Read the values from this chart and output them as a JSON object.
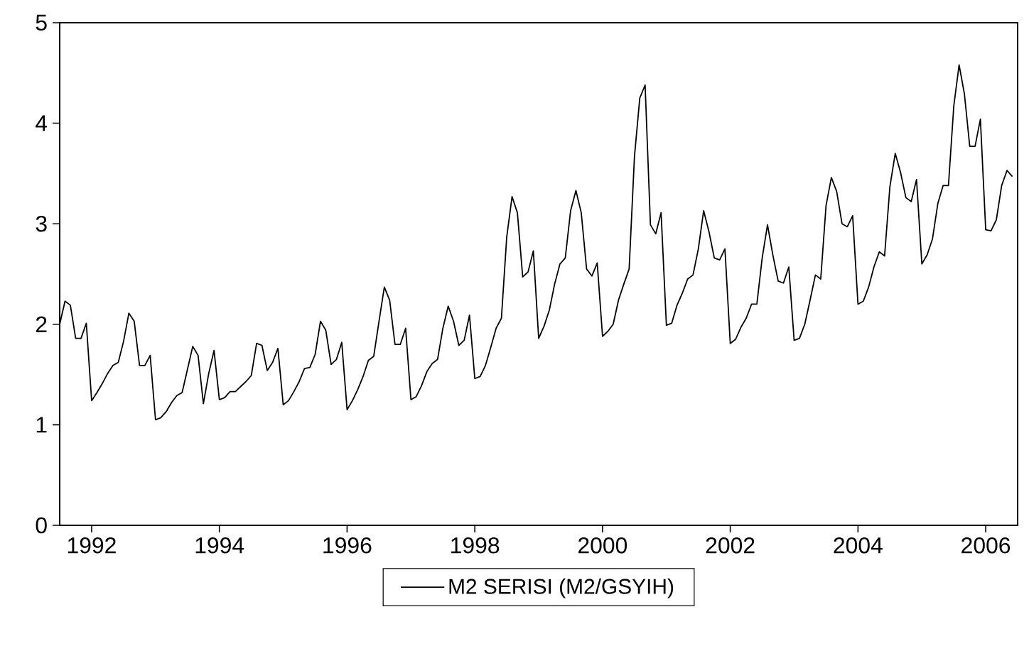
{
  "chart_data": {
    "type": "line",
    "x": [
      "1992-01",
      "1992-02",
      "1992-03",
      "1992-04",
      "1992-05",
      "1992-06",
      "1992-07",
      "1992-08",
      "1992-09",
      "1992-10",
      "1992-11",
      "1992-12",
      "1993-01",
      "1993-02",
      "1993-03",
      "1993-04",
      "1993-05",
      "1993-06",
      "1993-07",
      "1993-08",
      "1993-09",
      "1993-10",
      "1993-11",
      "1993-12",
      "1994-01",
      "1994-02",
      "1994-03",
      "1994-04",
      "1994-05",
      "1994-06",
      "1994-07",
      "1994-08",
      "1994-09",
      "1994-10",
      "1994-11",
      "1994-12",
      "1995-01",
      "1995-02",
      "1995-03",
      "1995-04",
      "1995-05",
      "1995-06",
      "1995-07",
      "1995-08",
      "1995-09",
      "1995-10",
      "1995-11",
      "1995-12",
      "1996-01",
      "1996-02",
      "1996-03",
      "1996-04",
      "1996-05",
      "1996-06",
      "1996-07",
      "1996-08",
      "1996-09",
      "1996-10",
      "1996-11",
      "1996-12",
      "1997-01",
      "1997-02",
      "1997-03",
      "1997-04",
      "1997-05",
      "1997-06",
      "1997-07",
      "1997-08",
      "1997-09",
      "1997-10",
      "1997-11",
      "1997-12",
      "1998-01",
      "1998-02",
      "1998-03",
      "1998-04",
      "1998-05",
      "1998-06",
      "1998-07",
      "1998-08",
      "1998-09",
      "1998-10",
      "1998-11",
      "1998-12",
      "1999-01",
      "1999-02",
      "1999-03",
      "1999-04",
      "1999-05",
      "1999-06",
      "1999-07",
      "1999-08",
      "1999-09",
      "1999-10",
      "1999-11",
      "1999-12",
      "2000-01",
      "2000-02",
      "2000-03",
      "2000-04",
      "2000-05",
      "2000-06",
      "2000-07",
      "2000-08",
      "2000-09",
      "2000-10",
      "2000-11",
      "2000-12",
      "2001-01",
      "2001-02",
      "2001-03",
      "2001-04",
      "2001-05",
      "2001-06",
      "2001-07",
      "2001-08",
      "2001-09",
      "2001-10",
      "2001-11",
      "2001-12",
      "2002-01",
      "2002-02",
      "2002-03",
      "2002-04",
      "2002-05",
      "2002-06",
      "2002-07",
      "2002-08",
      "2002-09",
      "2002-10",
      "2002-11",
      "2002-12",
      "2003-01",
      "2003-02",
      "2003-03",
      "2003-04",
      "2003-05",
      "2003-06",
      "2003-07",
      "2003-08",
      "2003-09",
      "2003-10",
      "2003-11",
      "2003-12",
      "2004-01",
      "2004-02",
      "2004-03",
      "2004-04",
      "2004-05",
      "2004-06",
      "2004-07",
      "2004-08",
      "2004-09",
      "2004-10",
      "2004-11",
      "2004-12",
      "2005-01",
      "2005-02",
      "2005-03",
      "2005-04",
      "2005-05",
      "2005-06",
      "2005-07",
      "2005-08",
      "2005-09",
      "2005-10",
      "2005-11",
      "2005-12",
      "2006-01",
      "2006-02",
      "2006-03",
      "2006-04",
      "2006-05",
      "2006-06",
      "2006-07",
      "2006-08",
      "2006-09",
      "2006-10",
      "2006-11",
      "2006-12"
    ],
    "series": [
      {
        "name": "M2 SERISI (M2/GSYIH)",
        "color": "#000000",
        "values": [
          2.0,
          2.23,
          2.19,
          1.86,
          1.86,
          2.01,
          1.24,
          1.32,
          1.41,
          1.51,
          1.59,
          1.62,
          1.83,
          2.11,
          2.03,
          1.59,
          1.59,
          1.69,
          1.05,
          1.07,
          1.13,
          1.22,
          1.29,
          1.32,
          1.55,
          1.78,
          1.69,
          1.21,
          1.51,
          1.74,
          1.25,
          1.27,
          1.33,
          1.33,
          1.38,
          1.43,
          1.49,
          1.81,
          1.79,
          1.54,
          1.62,
          1.76,
          1.2,
          1.24,
          1.33,
          1.43,
          1.56,
          1.57,
          1.7,
          2.03,
          1.94,
          1.6,
          1.65,
          1.82,
          1.15,
          1.24,
          1.35,
          1.48,
          1.64,
          1.68,
          2.03,
          2.37,
          2.24,
          1.8,
          1.8,
          1.96,
          1.25,
          1.28,
          1.39,
          1.53,
          1.61,
          1.65,
          1.96,
          2.18,
          2.03,
          1.79,
          1.84,
          2.09,
          1.46,
          1.48,
          1.59,
          1.77,
          1.96,
          2.06,
          2.87,
          3.27,
          3.11,
          2.47,
          2.52,
          2.73,
          1.86,
          1.98,
          2.14,
          2.4,
          2.6,
          2.66,
          3.13,
          3.33,
          3.11,
          2.55,
          2.48,
          2.61,
          1.88,
          1.93,
          2.0,
          2.24,
          2.4,
          2.55,
          3.67,
          4.25,
          4.38,
          2.99,
          2.9,
          3.11,
          1.99,
          2.01,
          2.19,
          2.31,
          2.45,
          2.49,
          2.75,
          3.13,
          2.92,
          2.66,
          2.64,
          2.75,
          1.81,
          1.85,
          1.97,
          2.06,
          2.2,
          2.2,
          2.66,
          2.99,
          2.69,
          2.43,
          2.41,
          2.57,
          1.84,
          1.86,
          2.0,
          2.24,
          2.49,
          2.45,
          3.18,
          3.46,
          3.32,
          3.0,
          2.97,
          3.08,
          2.2,
          2.23,
          2.37,
          2.57,
          2.72,
          2.68,
          3.37,
          3.7,
          3.51,
          3.26,
          3.22,
          3.44,
          2.6,
          2.69,
          2.85,
          3.2,
          3.38,
          3.38,
          4.17,
          4.58,
          4.29,
          3.77,
          3.77,
          4.04,
          2.94,
          2.93,
          3.04,
          3.38,
          3.53,
          3.47
        ]
      }
    ],
    "xlim": [
      "1992-01",
      "2007-01"
    ],
    "ylim": [
      0,
      5
    ],
    "xticks": [
      {
        "value": "1992-07",
        "label": "1992"
      },
      {
        "value": "1994-07",
        "label": "1994"
      },
      {
        "value": "1996-07",
        "label": "1996"
      },
      {
        "value": "1998-07",
        "label": "1998"
      },
      {
        "value": "2000-07",
        "label": "2000"
      },
      {
        "value": "2002-07",
        "label": "2002"
      },
      {
        "value": "2004-07",
        "label": "2004"
      },
      {
        "value": "2006-07",
        "label": "2006"
      }
    ],
    "yticks": [
      0,
      1,
      2,
      3,
      4,
      5
    ],
    "grid": false,
    "legend": "bottom",
    "line_style": "solid"
  }
}
